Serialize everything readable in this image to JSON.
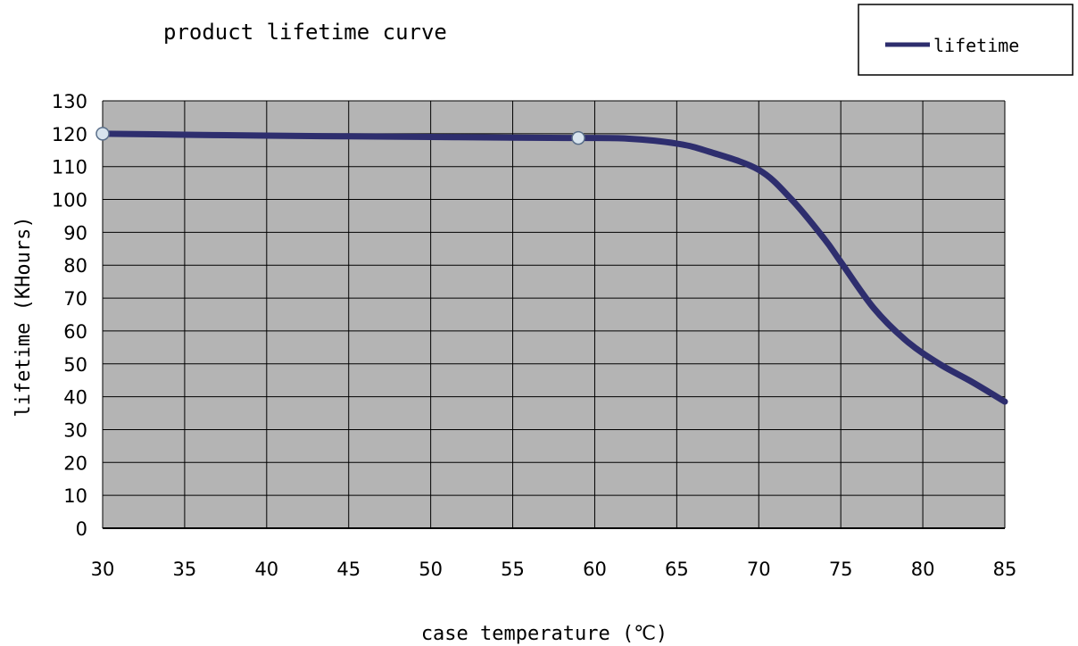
{
  "chart_data": {
    "type": "line",
    "title": "product lifetime curve",
    "xlabel": "case temperature (℃)",
    "ylabel": "lifetime (KHours)",
    "xlim": [
      30,
      85
    ],
    "ylim": [
      0,
      130
    ],
    "x_ticks": [
      "30",
      "35",
      "40",
      "45",
      "50",
      "55",
      "60",
      "65",
      "70",
      "75",
      "80",
      "85"
    ],
    "y_ticks": [
      "0",
      "10",
      "20",
      "30",
      "40",
      "50",
      "60",
      "70",
      "80",
      "90",
      "100",
      "110",
      "120",
      "130"
    ],
    "grid": true,
    "legend_position": "top-right",
    "colors": {
      "line": "#2e2e6e",
      "plot_bg": "#b4b4b4",
      "grid": "#000000",
      "marker": "#d8e4ee"
    },
    "series": [
      {
        "name": "lifetime",
        "x": [
          30,
          35,
          40,
          45,
          50,
          55,
          59,
          62,
          65,
          67,
          70,
          72,
          74,
          75,
          77,
          79,
          81,
          83,
          85
        ],
        "y": [
          120,
          119.7,
          119.4,
          119.2,
          119.0,
          118.8,
          118.7,
          118.5,
          117.0,
          114.5,
          109,
          100,
          88,
          81,
          67,
          57,
          50,
          44.5,
          38.5
        ]
      }
    ],
    "markers": [
      {
        "x": 30,
        "y": 120
      },
      {
        "x": 59,
        "y": 118.7
      }
    ]
  }
}
